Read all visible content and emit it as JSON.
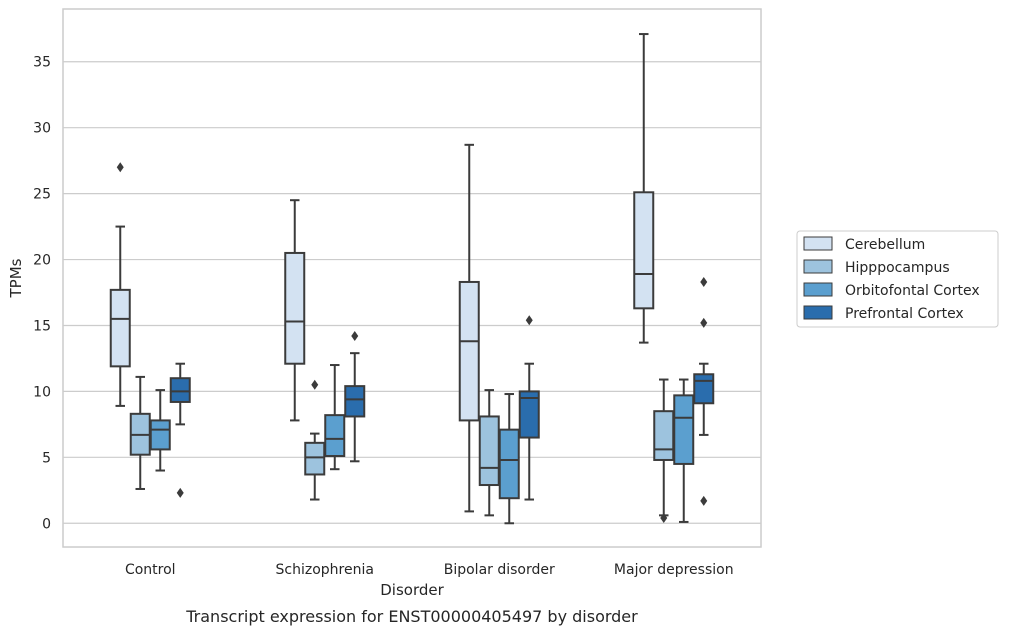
{
  "caption": "Transcript expression for ENST00000405497 by disorder",
  "chart_data": {
    "type": "box",
    "title": "",
    "xlabel": "Disorder",
    "ylabel": "TPMs",
    "ylim": [
      -1.8,
      39.0
    ],
    "yticks": [
      0,
      5,
      10,
      15,
      20,
      25,
      30,
      35
    ],
    "grid": "horizontal",
    "legend_position": "right",
    "categories": [
      "Control",
      "Schizophrenia",
      "Bipolar disorder",
      "Major depression"
    ],
    "series": [
      {
        "name": "Cerebellum",
        "color": "#d3e2f2",
        "boxes": [
          {
            "whisker_low": 8.9,
            "q1": 11.9,
            "median": 15.5,
            "q3": 17.7,
            "whisker_high": 22.5,
            "outliers": [
              27.0
            ]
          },
          {
            "whisker_low": 7.8,
            "q1": 12.1,
            "median": 15.3,
            "q3": 20.5,
            "whisker_high": 24.5,
            "outliers": []
          },
          {
            "whisker_low": 0.9,
            "q1": 7.8,
            "median": 13.8,
            "q3": 18.3,
            "whisker_high": 28.7,
            "outliers": []
          },
          {
            "whisker_low": 13.7,
            "q1": 16.3,
            "median": 18.9,
            "q3": 25.1,
            "whisker_high": 37.1,
            "outliers": []
          }
        ]
      },
      {
        "name": "Hipppocampus",
        "color": "#9dc3de",
        "boxes": [
          {
            "whisker_low": 2.6,
            "q1": 5.2,
            "median": 6.7,
            "q3": 8.3,
            "whisker_high": 11.1,
            "outliers": []
          },
          {
            "whisker_low": 1.8,
            "q1": 3.7,
            "median": 5.0,
            "q3": 6.1,
            "whisker_high": 6.8,
            "outliers": [
              10.5
            ]
          },
          {
            "whisker_low": 0.6,
            "q1": 2.9,
            "median": 4.2,
            "q3": 8.1,
            "whisker_high": 10.1,
            "outliers": []
          },
          {
            "whisker_low": 0.6,
            "q1": 4.8,
            "median": 5.6,
            "q3": 8.5,
            "whisker_high": 10.9,
            "outliers": [
              0.4
            ]
          }
        ]
      },
      {
        "name": "Orbitofontal Cortex",
        "color": "#5b9fcf",
        "boxes": [
          {
            "whisker_low": 4.0,
            "q1": 5.6,
            "median": 7.1,
            "q3": 7.8,
            "whisker_high": 10.1,
            "outliers": []
          },
          {
            "whisker_low": 4.1,
            "q1": 5.1,
            "median": 6.4,
            "q3": 8.2,
            "whisker_high": 12.0,
            "outliers": []
          },
          {
            "whisker_low": 0.0,
            "q1": 1.9,
            "median": 4.8,
            "q3": 7.1,
            "whisker_high": 9.8,
            "outliers": []
          },
          {
            "whisker_low": 0.1,
            "q1": 4.5,
            "median": 8.0,
            "q3": 9.7,
            "whisker_high": 10.9,
            "outliers": []
          }
        ]
      },
      {
        "name": "Prefrontal Cortex",
        "color": "#2a6dad",
        "boxes": [
          {
            "whisker_low": 7.5,
            "q1": 9.2,
            "median": 10.0,
            "q3": 11.0,
            "whisker_high": 12.1,
            "outliers": [
              2.3
            ]
          },
          {
            "whisker_low": 4.7,
            "q1": 8.1,
            "median": 9.4,
            "q3": 10.4,
            "whisker_high": 12.9,
            "outliers": [
              14.2
            ]
          },
          {
            "whisker_low": 1.8,
            "q1": 6.5,
            "median": 9.5,
            "q3": 10.0,
            "whisker_high": 12.1,
            "outliers": [
              15.4
            ]
          },
          {
            "whisker_low": 6.7,
            "q1": 9.1,
            "median": 10.8,
            "q3": 11.3,
            "whisker_high": 12.1,
            "outliers": [
              18.3,
              15.2,
              1.7
            ]
          }
        ]
      }
    ]
  }
}
